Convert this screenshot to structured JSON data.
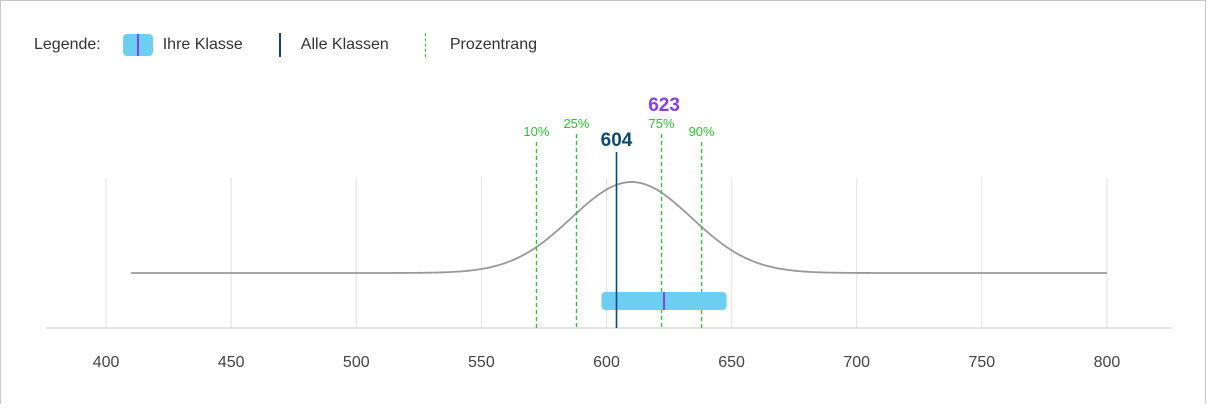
{
  "legend": {
    "title": "Legende:",
    "items": [
      {
        "label": "Ihre Klasse",
        "kind": "box",
        "color": "#6ccff2",
        "line_color": "#8b3fe0"
      },
      {
        "label": "Alle Klassen",
        "kind": "solid",
        "color": "#0b4b6f"
      },
      {
        "label": "Prozentrang",
        "kind": "dashed",
        "color": "#2bc42b"
      }
    ]
  },
  "chart_data": {
    "type": "distribution",
    "x_ticks": [
      400,
      450,
      500,
      550,
      600,
      650,
      700,
      750,
      800
    ],
    "xlim": [
      376,
      826
    ],
    "grid": true,
    "curve": {
      "mean": 610,
      "sd": 24,
      "x_start": 410,
      "x_end": 800,
      "color": "#999999"
    },
    "all_classes": {
      "value": 604,
      "label": "604",
      "color": "#0b4b6f"
    },
    "your_class": {
      "value": 623,
      "label": "623",
      "range": [
        598,
        648
      ],
      "fill": "#6ccff2",
      "line_color": "#8b3fe0"
    },
    "percentiles": [
      {
        "label": "10%",
        "value": 572
      },
      {
        "label": "25%",
        "value": 588
      },
      {
        "label": "75%",
        "value": 622
      },
      {
        "label": "90%",
        "value": 638
      }
    ],
    "percentile_color": "#2bc42b"
  }
}
